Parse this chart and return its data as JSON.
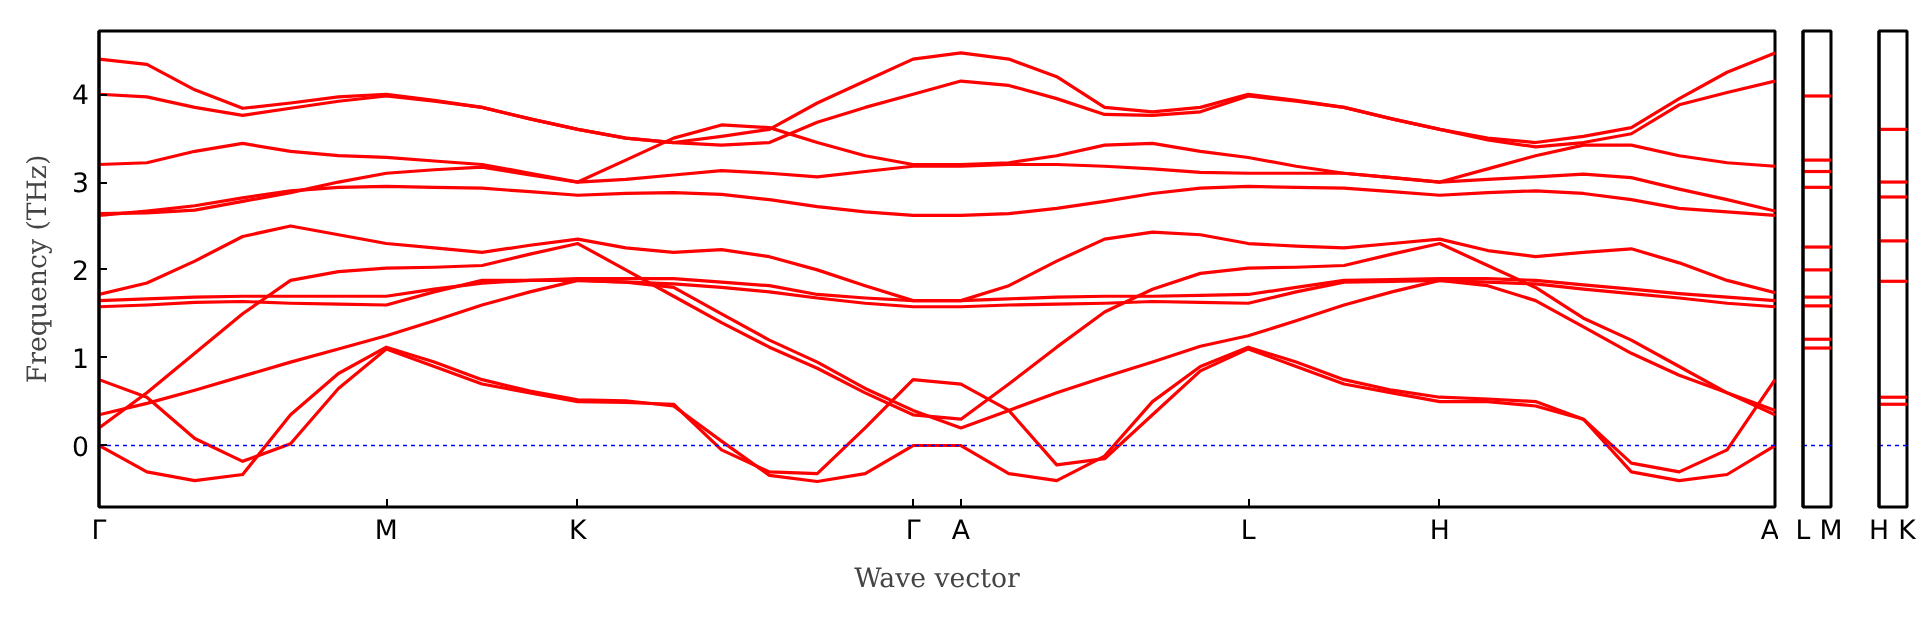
{
  "chart_data": [
    {
      "type": "line",
      "xlabel": "Wave vector",
      "ylabel": "Frequency (THz)",
      "ylim": [
        -0.7,
        4.72
      ],
      "categories": [
        "Γ",
        null,
        null,
        null,
        null,
        null,
        "M",
        null,
        null,
        null,
        "K",
        null,
        null,
        null,
        null,
        null,
        null,
        "Γ",
        "A",
        null,
        null,
        null,
        null,
        null,
        "L",
        null,
        null,
        null,
        "H",
        null,
        null,
        null,
        null,
        null,
        null,
        "A"
      ],
      "yticks": [
        0,
        1,
        2,
        3,
        4
      ],
      "grid": false,
      "line_style": "solid",
      "ref_lines": [
        {
          "axis": "y",
          "value": 0,
          "color": "#0000ff",
          "line_style": "dotted"
        }
      ],
      "series": [
        {
          "color": "#ff0000",
          "values": [
            4.4,
            4.34,
            4.05,
            3.84,
            3.9,
            3.97,
            4.0,
            3.93,
            3.85,
            3.72,
            3.6,
            3.5,
            3.45,
            3.52,
            3.6,
            3.9,
            4.15,
            4.4,
            4.47,
            4.4,
            4.2,
            3.85,
            3.8,
            3.85,
            4.0,
            3.93,
            3.85,
            3.72,
            3.6,
            3.5,
            3.45,
            3.52,
            3.62,
            3.95,
            4.25,
            4.47
          ]
        },
        {
          "color": "#ff0000",
          "values": [
            4.0,
            3.97,
            3.85,
            3.76,
            3.84,
            3.92,
            3.98,
            3.92,
            3.85,
            3.72,
            3.6,
            3.5,
            3.45,
            3.42,
            3.45,
            3.68,
            3.85,
            4.0,
            4.15,
            4.1,
            3.95,
            3.77,
            3.76,
            3.8,
            3.98,
            3.92,
            3.85,
            3.72,
            3.6,
            3.48,
            3.4,
            3.45,
            3.55,
            3.88,
            4.02,
            4.15
          ]
        },
        {
          "color": "#ff0000",
          "values": [
            3.2,
            3.22,
            3.35,
            3.44,
            3.35,
            3.3,
            3.28,
            3.24,
            3.2,
            3.1,
            3.0,
            3.25,
            3.5,
            3.65,
            3.62,
            3.45,
            3.3,
            3.2,
            3.2,
            3.22,
            3.3,
            3.42,
            3.44,
            3.35,
            3.28,
            3.18,
            3.1,
            3.05,
            3.0,
            3.15,
            3.3,
            3.42,
            3.42,
            3.3,
            3.22,
            3.18
          ]
        },
        {
          "color": "#ff0000",
          "values": [
            2.64,
            2.65,
            2.68,
            2.78,
            2.88,
            3.0,
            3.1,
            3.14,
            3.17,
            3.08,
            3.0,
            3.03,
            3.08,
            3.13,
            3.1,
            3.06,
            3.12,
            3.18,
            3.18,
            3.2,
            3.2,
            3.18,
            3.15,
            3.11,
            3.1,
            3.1,
            3.1,
            3.05,
            3.0,
            3.03,
            3.06,
            3.09,
            3.05,
            2.92,
            2.8,
            2.67
          ]
        },
        {
          "color": "#ff0000",
          "values": [
            2.62,
            2.67,
            2.73,
            2.82,
            2.9,
            2.94,
            2.95,
            2.94,
            2.93,
            2.89,
            2.85,
            2.87,
            2.88,
            2.86,
            2.8,
            2.72,
            2.66,
            2.62,
            2.62,
            2.64,
            2.7,
            2.78,
            2.87,
            2.93,
            2.95,
            2.94,
            2.93,
            2.89,
            2.85,
            2.88,
            2.9,
            2.87,
            2.8,
            2.7,
            2.66,
            2.62
          ]
        },
        {
          "color": "#ff0000",
          "values": [
            1.72,
            1.85,
            2.1,
            2.38,
            2.5,
            2.4,
            2.3,
            2.25,
            2.2,
            2.28,
            2.35,
            2.25,
            2.2,
            2.23,
            2.15,
            2.0,
            1.82,
            1.65,
            1.65,
            1.82,
            2.1,
            2.35,
            2.43,
            2.4,
            2.3,
            2.27,
            2.25,
            2.3,
            2.35,
            2.22,
            2.15,
            2.2,
            2.24,
            2.08,
            1.88,
            1.74
          ]
        },
        {
          "color": "#ff0000",
          "values": [
            1.65,
            1.67,
            1.69,
            1.7,
            1.7,
            1.7,
            1.7,
            1.78,
            1.85,
            1.88,
            1.9,
            1.9,
            1.9,
            1.86,
            1.82,
            1.72,
            1.68,
            1.65,
            1.65,
            1.67,
            1.69,
            1.7,
            1.7,
            1.71,
            1.72,
            1.8,
            1.88,
            1.89,
            1.9,
            1.9,
            1.88,
            1.83,
            1.78,
            1.73,
            1.69,
            1.65
          ]
        },
        {
          "color": "#ff0000",
          "values": [
            1.58,
            1.6,
            1.63,
            1.64,
            1.62,
            1.61,
            1.6,
            1.75,
            1.88,
            1.88,
            1.88,
            1.86,
            1.84,
            1.8,
            1.75,
            1.68,
            1.62,
            1.58,
            1.58,
            1.6,
            1.61,
            1.62,
            1.64,
            1.63,
            1.62,
            1.75,
            1.86,
            1.87,
            1.88,
            1.86,
            1.84,
            1.78,
            1.73,
            1.68,
            1.62,
            1.58
          ]
        },
        {
          "color": "#ff0000",
          "values": [
            0.2,
            0.6,
            1.05,
            1.5,
            1.88,
            1.98,
            2.02,
            2.03,
            2.05,
            2.18,
            2.3,
            2.0,
            1.7,
            1.4,
            1.12,
            0.88,
            0.6,
            0.35,
            0.3,
            0.7,
            1.12,
            1.52,
            1.78,
            1.96,
            2.02,
            2.03,
            2.05,
            2.18,
            2.3,
            2.05,
            1.8,
            1.45,
            1.2,
            0.9,
            0.6,
            0.35
          ]
        },
        {
          "color": "#ff0000",
          "values": [
            0.35,
            0.48,
            0.63,
            0.79,
            0.95,
            1.1,
            1.25,
            1.42,
            1.6,
            1.75,
            1.88,
            1.86,
            1.8,
            1.5,
            1.2,
            0.95,
            0.65,
            0.4,
            0.2,
            0.4,
            0.6,
            0.78,
            0.95,
            1.13,
            1.25,
            1.42,
            1.6,
            1.75,
            1.88,
            1.82,
            1.65,
            1.35,
            1.05,
            0.8,
            0.6,
            0.4
          ]
        },
        {
          "color": "#ff0000",
          "values": [
            0,
            -0.3,
            -0.4,
            -0.33,
            0.35,
            0.82,
            1.12,
            0.95,
            0.75,
            0.62,
            0.52,
            0.51,
            0.45,
            0.05,
            -0.34,
            -0.41,
            -0.32,
            0,
            0,
            -0.32,
            -0.4,
            -0.12,
            0.5,
            0.9,
            1.12,
            0.95,
            0.75,
            0.63,
            0.55,
            0.53,
            0.5,
            0.3,
            -0.3,
            -0.4,
            -0.33,
            0
          ]
        },
        {
          "color": "#ff0000",
          "values": [
            0.75,
            0.55,
            0.08,
            -0.18,
            0.02,
            0.65,
            1.1,
            0.9,
            0.7,
            0.6,
            0.5,
            0.49,
            0.47,
            -0.05,
            -0.3,
            -0.32,
            0.2,
            0.75,
            0.7,
            0.4,
            -0.22,
            -0.15,
            0.35,
            0.85,
            1.1,
            0.9,
            0.7,
            0.6,
            0.5,
            0.5,
            0.45,
            0.3,
            -0.2,
            -0.3,
            -0.05,
            0.75
          ]
        }
      ]
    },
    {
      "type": "line",
      "ylim": [
        -0.7,
        4.72
      ],
      "categories": [
        "L",
        "M"
      ],
      "yticks": [
        0,
        1,
        2,
        3,
        4
      ],
      "tick_labels": "x",
      "ref_lines": [
        {
          "axis": "y",
          "value": 0,
          "color": "#0000ff",
          "line_style": "dotted"
        }
      ],
      "series": [
        {
          "color": "#ff0000",
          "values": [
            3.98,
            3.98
          ]
        },
        {
          "color": "#ff0000",
          "values": [
            3.25,
            3.25
          ]
        },
        {
          "color": "#ff0000",
          "values": [
            3.12,
            3.12
          ]
        },
        {
          "color": "#ff0000",
          "values": [
            2.94,
            2.94
          ]
        },
        {
          "color": "#ff0000",
          "values": [
            2.26,
            2.26
          ]
        },
        {
          "color": "#ff0000",
          "values": [
            2.0,
            2.0
          ]
        },
        {
          "color": "#ff0000",
          "values": [
            1.69,
            1.69
          ]
        },
        {
          "color": "#ff0000",
          "values": [
            1.59,
            1.59
          ]
        },
        {
          "color": "#ff0000",
          "values": [
            1.21,
            1.21
          ]
        },
        {
          "color": "#ff0000",
          "values": [
            1.11,
            1.11
          ]
        }
      ]
    },
    {
      "type": "line",
      "ylim": [
        -0.7,
        4.72
      ],
      "categories": [
        "H",
        "K"
      ],
      "yticks": [
        0,
        1,
        2,
        3,
        4
      ],
      "tick_labels": "x",
      "ref_lines": [
        {
          "axis": "y",
          "value": 0,
          "color": "#0000ff",
          "line_style": "dotted"
        }
      ],
      "series": [
        {
          "color": "#ff0000",
          "values": [
            3.6,
            3.6
          ]
        },
        {
          "color": "#ff0000",
          "values": [
            3.0,
            3.0
          ]
        },
        {
          "color": "#ff0000",
          "values": [
            2.83,
            2.83
          ]
        },
        {
          "color": "#ff0000",
          "values": [
            2.33,
            2.33
          ]
        },
        {
          "color": "#ff0000",
          "values": [
            1.87,
            1.87
          ]
        },
        {
          "color": "#ff0000",
          "values": [
            0.55,
            0.55
          ]
        },
        {
          "color": "#ff0000",
          "values": [
            0.47,
            0.47
          ]
        }
      ]
    }
  ]
}
